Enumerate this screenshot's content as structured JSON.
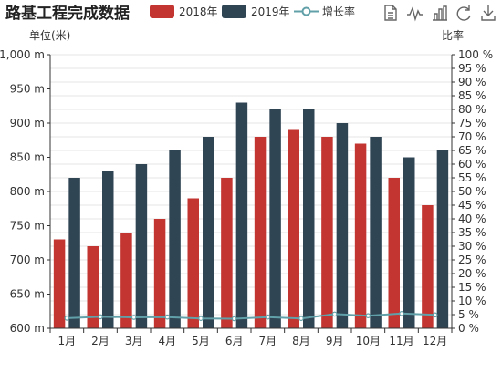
{
  "toolbox": {
    "icons": [
      "data-view-icon",
      "line-chart-icon",
      "bar-chart-icon",
      "restore-icon",
      "save-image-icon"
    ]
  },
  "colors": {
    "series_2018": "#c23531",
    "series_2019": "#2f4554",
    "growth": "#61a0a8"
  },
  "chart_data": {
    "type": "bar",
    "title": "路基工程完成数据",
    "ylabel": "单位(米)",
    "y2label": "比率",
    "categories": [
      "1月",
      "2月",
      "3月",
      "4月",
      "5月",
      "6月",
      "7月",
      "8月",
      "9月",
      "10月",
      "11月",
      "12月"
    ],
    "ylim": [
      600,
      1000
    ],
    "yticks": [
      "600 m",
      "650 m",
      "700 m",
      "750 m",
      "800 m",
      "850 m",
      "900 m",
      "950 m",
      "1,000 m"
    ],
    "y2lim": [
      0,
      100
    ],
    "y2ticks": [
      "0 %",
      "5 %",
      "10 %",
      "15 %",
      "20 %",
      "25 %",
      "30 %",
      "35 %",
      "40 %",
      "45 %",
      "50 %",
      "55 %",
      "60 %",
      "65 %",
      "70 %",
      "75 %",
      "80 %",
      "85 %",
      "90 %",
      "95 %",
      "100 %"
    ],
    "legend_position": "top",
    "grid": true,
    "series": [
      {
        "name": "2018年",
        "type": "bar",
        "values": [
          730,
          720,
          740,
          760,
          790,
          820,
          880,
          890,
          880,
          870,
          820,
          780
        ]
      },
      {
        "name": "2019年",
        "type": "bar",
        "values": [
          820,
          830,
          840,
          860,
          880,
          930,
          920,
          920,
          900,
          880,
          850,
          860
        ]
      },
      {
        "name": "增长率",
        "type": "line",
        "axis": "right",
        "values": [
          3.7,
          4.2,
          4.0,
          4.1,
          3.6,
          3.5,
          4.1,
          3.6,
          5.2,
          4.6,
          5.4,
          4.9
        ]
      }
    ]
  }
}
